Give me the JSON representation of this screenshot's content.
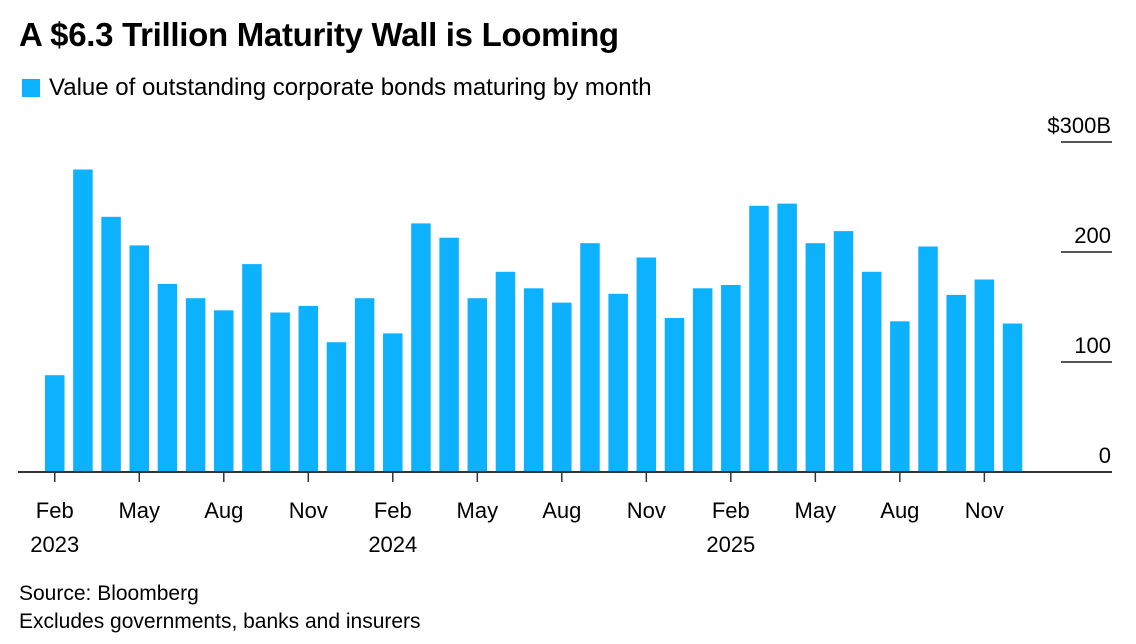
{
  "title": "A $6.3 Trillion Maturity Wall is Looming",
  "footer": {
    "source": "Source: Bloomberg",
    "note": "Excludes governments, banks and insurers"
  },
  "chart_data": {
    "type": "bar",
    "legend": {
      "label": "Value of outstanding corporate bonds maturing by month",
      "placement": "top-left"
    },
    "color": "#0db2ff",
    "ylim": [
      0,
      300
    ],
    "y_ticks": [
      0,
      100,
      200,
      300
    ],
    "y_tick_labels": [
      "0",
      "100",
      "200",
      "$300B"
    ],
    "x_tick_labels": [
      {
        "index": 0,
        "label": "Feb",
        "year": "2023"
      },
      {
        "index": 3,
        "label": "May",
        "year": ""
      },
      {
        "index": 6,
        "label": "Aug",
        "year": ""
      },
      {
        "index": 9,
        "label": "Nov",
        "year": ""
      },
      {
        "index": 12,
        "label": "Feb",
        "year": "2024"
      },
      {
        "index": 15,
        "label": "May",
        "year": ""
      },
      {
        "index": 18,
        "label": "Aug",
        "year": ""
      },
      {
        "index": 21,
        "label": "Nov",
        "year": ""
      },
      {
        "index": 24,
        "label": "Feb",
        "year": "2025"
      },
      {
        "index": 27,
        "label": "May",
        "year": ""
      },
      {
        "index": 30,
        "label": "Aug",
        "year": ""
      },
      {
        "index": 33,
        "label": "Nov",
        "year": ""
      }
    ],
    "categories": [
      "Feb 2023",
      "Mar 2023",
      "Apr 2023",
      "May 2023",
      "Jun 2023",
      "Jul 2023",
      "Aug 2023",
      "Sep 2023",
      "Oct 2023",
      "Nov 2023",
      "Dec 2023",
      "Jan 2024",
      "Feb 2024",
      "Mar 2024",
      "Apr 2024",
      "May 2024",
      "Jun 2024",
      "Jul 2024",
      "Aug 2024",
      "Sep 2024",
      "Oct 2024",
      "Nov 2024",
      "Dec 2024",
      "Jan 2025",
      "Feb 2025",
      "Mar 2025",
      "Apr 2025",
      "May 2025",
      "Jun 2025",
      "Jul 2025",
      "Aug 2025",
      "Sep 2025",
      "Oct 2025",
      "Nov 2025",
      "Dec 2025"
    ],
    "values": [
      88,
      275,
      232,
      206,
      171,
      158,
      147,
      189,
      145,
      151,
      118,
      158,
      126,
      226,
      213,
      158,
      182,
      167,
      154,
      208,
      162,
      195,
      140,
      167,
      170,
      242,
      244,
      208,
      219,
      182,
      137,
      205,
      161,
      175,
      135
    ],
    "grid": false
  }
}
